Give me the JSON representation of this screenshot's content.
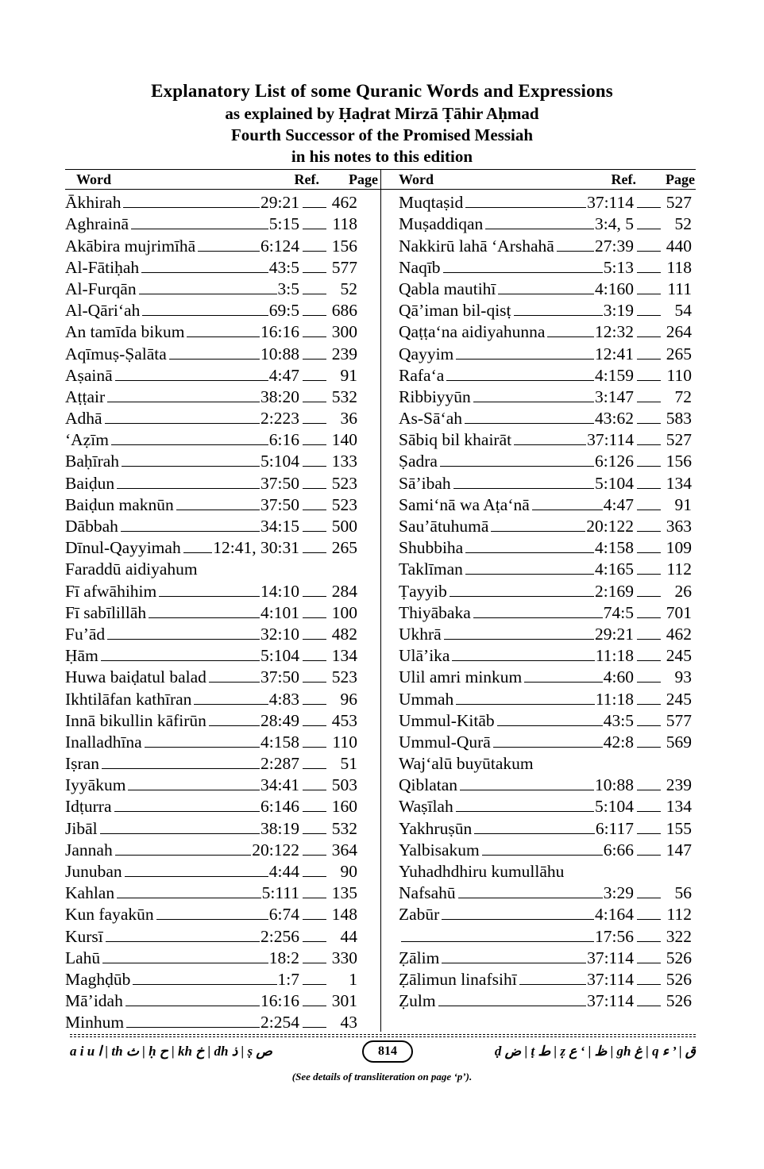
{
  "header": {
    "title": "Explanatory List of some Quranic Words and Expressions",
    "line2": "as explained by Ḥaḍrat Mirzā Ṭāhir Aḥmad",
    "line3": "Fourth Successor of the Promised Messiah",
    "line4": "in his notes to this edition"
  },
  "columns": {
    "word": "Word",
    "ref": "Ref.",
    "page": "Page"
  },
  "left_entries": [
    {
      "word": "Ākhirah",
      "ref": "29:21",
      "page": "462"
    },
    {
      "word": "Aghrainā",
      "ref": "5:15",
      "page": "118"
    },
    {
      "word": "Akābira mujrimīhā",
      "ref": "6:124",
      "page": "156"
    },
    {
      "word": "Al-Fātiḥah",
      "ref": "43:5",
      "page": "577"
    },
    {
      "word": "Al-Furqān",
      "ref": "3:5",
      "page": "52"
    },
    {
      "word": "Al-Qāri‘ah",
      "ref": "69:5",
      "page": "686"
    },
    {
      "word": "An tamīda bikum",
      "ref": "16:16",
      "page": "300"
    },
    {
      "word": "Aqīmuṣ-Ṣalāta",
      "ref": "10:88",
      "page": "239"
    },
    {
      "word": "Aṣainā",
      "ref": "4:47",
      "page": "91"
    },
    {
      "word": "Aṭṭair",
      "ref": "38:20",
      "page": "532"
    },
    {
      "word": "Adhā",
      "ref": "2:223",
      "page": "36"
    },
    {
      "word": "‘Aẓīm",
      "ref": "6:16",
      "page": "140"
    },
    {
      "word": "Baḥīrah",
      "ref": "5:104",
      "page": "133"
    },
    {
      "word": "Baiḍun",
      "ref": "37:50",
      "page": "523"
    },
    {
      "word": "Baiḍun maknūn",
      "ref": "37:50",
      "page": "523"
    },
    {
      "word": "Dābbah",
      "ref": "34:15",
      "page": "500"
    },
    {
      "word": "Dīnul-Qayyimah",
      "ref": "12:41, 30:31",
      "page": "265"
    },
    {
      "word": "Faraddū aidiyahum",
      "ref": "",
      "page": ""
    },
    {
      "word": "Fī afwāhihim",
      "ref": "14:10",
      "page": "284"
    },
    {
      "word": "Fī sabīlillāh",
      "ref": "4:101",
      "page": "100"
    },
    {
      "word": "Fu’ād",
      "ref": "32:10",
      "page": "482"
    },
    {
      "word": "Ḥām",
      "ref": "5:104",
      "page": "134"
    },
    {
      "word": "Huwa baiḍatul balad",
      "ref": "37:50",
      "page": "523"
    },
    {
      "word": "Ikhtilāfan kathīran",
      "ref": "4:83",
      "page": "96"
    },
    {
      "word": "Innā bikullin kāfirūn",
      "ref": "28:49",
      "page": "453"
    },
    {
      "word": "Inalladhīna",
      "ref": "4:158",
      "page": "110"
    },
    {
      "word": "Iṣran",
      "ref": "2:287",
      "page": "51"
    },
    {
      "word": "Iyyākum",
      "ref": "34:41",
      "page": "503"
    },
    {
      "word": "Idṭurra",
      "ref": "6:146",
      "page": "160"
    },
    {
      "word": "Jibāl",
      "ref": "38:19",
      "page": "532"
    },
    {
      "word": "Jannah",
      "ref": "20:122",
      "page": "364"
    },
    {
      "word": "Junuban",
      "ref": "4:44",
      "page": "90"
    },
    {
      "word": "Kahlan",
      "ref": "5:111",
      "page": "135"
    },
    {
      "word": "Kun fayakūn",
      "ref": "6:74",
      "page": "148"
    },
    {
      "word": "Kursī",
      "ref": "2:256",
      "page": "44"
    },
    {
      "word": "Lahū",
      "ref": "18:2",
      "page": "330"
    },
    {
      "word": "Maghḍūb",
      "ref": "1:7",
      "page": "1"
    },
    {
      "word": "Mā’idah",
      "ref": "16:16",
      "page": "301"
    },
    {
      "word": "Minhum",
      "ref": "2:254",
      "page": "43"
    }
  ],
  "right_entries": [
    {
      "word": "Muqtaṣid",
      "ref": "37:114",
      "page": "527"
    },
    {
      "word": "Muṣaddiqan",
      "ref": "3:4, 5",
      "page": "52"
    },
    {
      "word": "Nakkirū lahā ‘Arshahā",
      "ref": "27:39",
      "page": "440"
    },
    {
      "word": "Naqīb",
      "ref": "5:13",
      "page": "118"
    },
    {
      "word": "Qabla mautihī",
      "ref": "4:160",
      "page": "111"
    },
    {
      "word": "Qā’iman bil-qisṭ",
      "ref": "3:19",
      "page": "54"
    },
    {
      "word": "Qaṭṭa‘na aidiyahunna",
      "ref": "12:32",
      "page": "264"
    },
    {
      "word": "Qayyim",
      "ref": "12:41",
      "page": "265"
    },
    {
      "word": "Rafa‘a",
      "ref": "4:159",
      "page": "110"
    },
    {
      "word": "Ribbiyyūn",
      "ref": "3:147",
      "page": "72"
    },
    {
      "word": "As-Sā‘ah",
      "ref": "43:62",
      "page": "583"
    },
    {
      "word": "Sābiq bil khairāt",
      "ref": "37:114",
      "page": "527"
    },
    {
      "word": "Ṣadra",
      "ref": "6:126",
      "page": "156"
    },
    {
      "word": "Sā’ibah",
      "ref": "5:104",
      "page": "134"
    },
    {
      "word": "Sami‘nā wa Aṭa‘nā",
      "ref": "4:47",
      "page": "91"
    },
    {
      "word": "Sau’ātuhumā",
      "ref": "20:122",
      "page": "363"
    },
    {
      "word": "Shubbiha",
      "ref": "4:158",
      "page": "109"
    },
    {
      "word": "Taklīman",
      "ref": "4:165",
      "page": "112"
    },
    {
      "word": "Ṭayyib",
      "ref": "2:169",
      "page": "26"
    },
    {
      "word": "Thiyābaka",
      "ref": "74:5",
      "page": "701"
    },
    {
      "word": "Ukhrā",
      "ref": "29:21",
      "page": "462"
    },
    {
      "word": "Ulā’ika",
      "ref": "11:18",
      "page": "245"
    },
    {
      "word": "Ulil amri minkum",
      "ref": "4:60",
      "page": "93"
    },
    {
      "word": "Ummah",
      "ref": "11:18",
      "page": "245"
    },
    {
      "word": "Ummul-Kitāb",
      "ref": "43:5",
      "page": "577"
    },
    {
      "word": "Ummul-Qurā",
      "ref": "42:8",
      "page": "569"
    },
    {
      "word": "Waj‘alū buyūtakum",
      "ref": "",
      "page": ""
    },
    {
      "word": "Qiblatan",
      "ref": "10:88",
      "page": "239"
    },
    {
      "word": "Waṣīlah",
      "ref": "5:104",
      "page": "134"
    },
    {
      "word": "Yakhruṣūn",
      "ref": "6:117",
      "page": "155"
    },
    {
      "word": "Yalbisakum",
      "ref": "6:66",
      "page": "147"
    },
    {
      "word": "Yuhadhdhiru kumullāhu",
      "ref": "",
      "page": ""
    },
    {
      "word": "Nafsahū",
      "ref": "3:29",
      "page": "56"
    },
    {
      "word": "Zabūr",
      "ref": "4:164",
      "page": "112"
    },
    {
      "word": "",
      "ref": "17:56",
      "page": "322"
    },
    {
      "word": "Ẓālim",
      "ref": "37:114",
      "page": "526"
    },
    {
      "word": "Ẓālimun linafsihī",
      "ref": "37:114",
      "page": "526"
    },
    {
      "word": "Ẓulm",
      "ref": "37:114",
      "page": "526"
    }
  ],
  "footer": {
    "translit_left": "a i u ﺍ | th ﺙ | ḥ ﺡ | kh ﺥ | dh ﺫ | ṣ ﺹ",
    "page_number": "814",
    "translit_right": "ḍ ﺽ | ṭ ﻁ | ẓ ﻅ | ‘ ﻉ | gh ﻍ | q ﻕ | ’ ﺀ",
    "note": "(See details of transliteration on  page ‘p’)."
  }
}
